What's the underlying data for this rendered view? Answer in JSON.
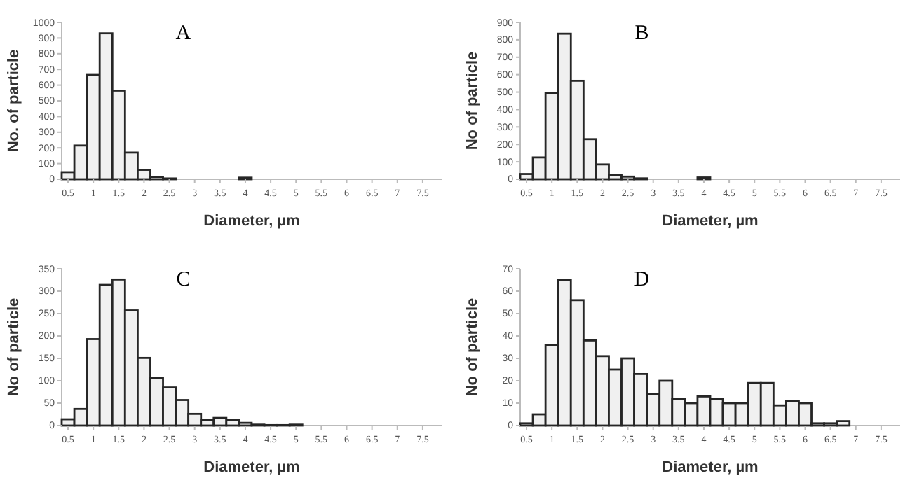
{
  "chart_data": [
    {
      "type": "histogram",
      "title": "A",
      "xlabel": "Diameter, µm",
      "ylabel": "No. of particle",
      "color": "#f0f0f0",
      "bins": [
        0.375,
        0.625,
        0.875,
        1.125,
        1.375,
        1.625,
        1.875,
        2.125,
        2.375,
        2.625,
        2.875,
        3.125,
        3.375,
        3.625,
        3.875,
        4.125,
        4.375,
        4.625,
        4.875,
        5.125,
        5.375,
        5.625,
        5.875,
        6.125,
        6.375,
        6.625,
        6.875,
        7.125,
        7.375,
        7.625,
        7.875
      ],
      "values": [
        45,
        215,
        665,
        930,
        565,
        170,
        60,
        15,
        5,
        0,
        0,
        0,
        0,
        0,
        10,
        0,
        0,
        0,
        0,
        0,
        0,
        0,
        0,
        0,
        0,
        0,
        0,
        0,
        0,
        0
      ],
      "xlim": [
        0.375,
        7.875
      ],
      "xticks": [
        0.5,
        1,
        1.5,
        2,
        2.5,
        3,
        3.5,
        4,
        4.5,
        5,
        5.5,
        6,
        6.5,
        7,
        7.5
      ],
      "ylim": [
        0,
        1000
      ],
      "yticks": [
        0,
        100,
        200,
        300,
        400,
        500,
        600,
        700,
        800,
        900,
        1000
      ],
      "grid": false
    },
    {
      "type": "histogram",
      "title": "B",
      "xlabel": "Diameter, µm",
      "ylabel": "No of particle",
      "color": "#f0f0f0",
      "bins": [
        0.375,
        0.625,
        0.875,
        1.125,
        1.375,
        1.625,
        1.875,
        2.125,
        2.375,
        2.625,
        2.875,
        3.125,
        3.375,
        3.625,
        3.875,
        4.125,
        4.375,
        4.625,
        4.875,
        5.125,
        5.375,
        5.625,
        5.875,
        6.125,
        6.375,
        6.625,
        6.875,
        7.125,
        7.375,
        7.625,
        7.875
      ],
      "values": [
        30,
        125,
        495,
        835,
        565,
        230,
        85,
        25,
        15,
        5,
        0,
        0,
        0,
        0,
        10,
        0,
        0,
        0,
        0,
        0,
        0,
        0,
        0,
        0,
        0,
        0,
        0,
        0,
        0,
        0
      ],
      "xlim": [
        0.375,
        7.875
      ],
      "xticks": [
        0.5,
        1,
        1.5,
        2,
        2.5,
        3,
        3.5,
        4,
        4.5,
        5,
        5.5,
        6,
        6.5,
        7,
        7.5
      ],
      "ylim": [
        0,
        900
      ],
      "yticks": [
        0,
        100,
        200,
        300,
        400,
        500,
        600,
        700,
        800,
        900
      ],
      "grid": false
    },
    {
      "type": "histogram",
      "title": "C",
      "xlabel": "Diameter, µm",
      "ylabel": "No of particle",
      "color": "#f0f0f0",
      "bins": [
        0.375,
        0.625,
        0.875,
        1.125,
        1.375,
        1.625,
        1.875,
        2.125,
        2.375,
        2.625,
        2.875,
        3.125,
        3.375,
        3.625,
        3.875,
        4.125,
        4.375,
        4.625,
        4.875,
        5.125,
        5.375,
        5.625,
        5.875,
        6.125,
        6.375,
        6.625,
        6.875,
        7.125,
        7.375,
        7.625,
        7.875
      ],
      "values": [
        14,
        37,
        193,
        314,
        326,
        257,
        151,
        106,
        85,
        57,
        26,
        13,
        17,
        12,
        6,
        2,
        1,
        1,
        2,
        0,
        0,
        0,
        0,
        0,
        0,
        0,
        0,
        0,
        0,
        0
      ],
      "xlim": [
        0.375,
        7.875
      ],
      "xticks": [
        0.5,
        1,
        1.5,
        2,
        2.5,
        3,
        3.5,
        4,
        4.5,
        5,
        5.5,
        6,
        6.5,
        7,
        7.5
      ],
      "ylim": [
        0,
        350
      ],
      "yticks": [
        0,
        50,
        100,
        150,
        200,
        250,
        300,
        350
      ],
      "grid": false
    },
    {
      "type": "histogram",
      "title": "D",
      "xlabel": "Diameter, µm",
      "ylabel": "No of particle",
      "color": "#f0f0f0",
      "bins": [
        0.375,
        0.625,
        0.875,
        1.125,
        1.375,
        1.625,
        1.875,
        2.125,
        2.375,
        2.625,
        2.875,
        3.125,
        3.375,
        3.625,
        3.875,
        4.125,
        4.375,
        4.625,
        4.875,
        5.125,
        5.375,
        5.625,
        5.875,
        6.125,
        6.375,
        6.625,
        6.875,
        7.125,
        7.375,
        7.625,
        7.875
      ],
      "values": [
        1,
        5,
        36,
        65,
        56,
        38,
        31,
        25,
        30,
        23,
        14,
        20,
        12,
        10,
        13,
        12,
        10,
        10,
        19,
        19,
        9,
        11,
        10,
        1,
        1,
        2,
        0,
        0,
        0,
        0
      ],
      "xlim": [
        0.375,
        7.875
      ],
      "xticks": [
        0.5,
        1,
        1.5,
        2,
        2.5,
        3,
        3.5,
        4,
        4.5,
        5,
        5.5,
        6,
        6.5,
        7,
        7.5
      ],
      "ylim": [
        0,
        70
      ],
      "yticks": [
        0,
        10,
        20,
        30,
        40,
        50,
        60,
        70
      ],
      "grid": false
    }
  ]
}
